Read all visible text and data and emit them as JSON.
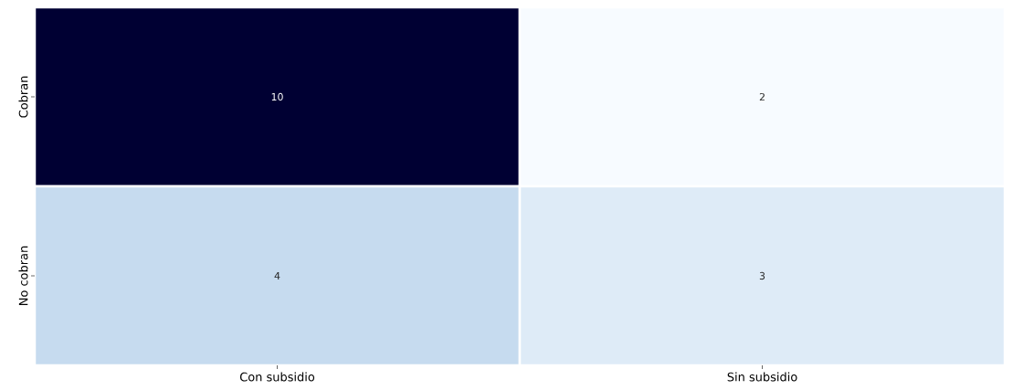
{
  "chart_data": {
    "type": "heatmap",
    "categories": [
      "Con subsidio",
      "Sin subsidio"
    ],
    "y_categories": [
      "Cobran",
      "No cobran"
    ],
    "cells": [
      [
        10,
        2
      ],
      [
        4,
        3
      ]
    ],
    "data_labels": true
  }
}
